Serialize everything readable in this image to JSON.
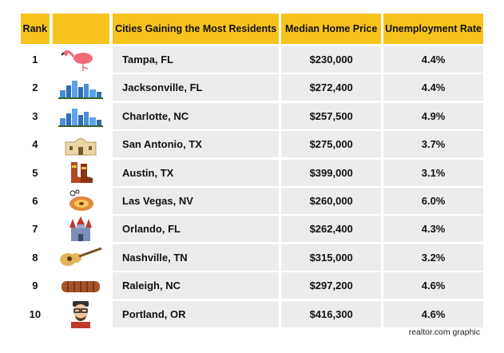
{
  "headers": {
    "rank": "Rank",
    "city": "Cities Gaining the Most Residents",
    "price": "Median Home Price",
    "unemployment": "Unemployment Rate"
  },
  "rows": [
    {
      "rank": "1",
      "city": "Tampa, FL",
      "price": "$230,000",
      "unemployment": "4.4%",
      "icon": "flamingo-icon"
    },
    {
      "rank": "2",
      "city": "Jacksonville, FL",
      "price": "$272,400",
      "unemployment": "4.4%",
      "icon": "skyline-icon"
    },
    {
      "rank": "3",
      "city": "Charlotte, NC",
      "price": "$257,500",
      "unemployment": "4.9%",
      "icon": "skyline-icon"
    },
    {
      "rank": "4",
      "city": "San Antonio, TX",
      "price": "$275,000",
      "unemployment": "3.7%",
      "icon": "alamo-icon"
    },
    {
      "rank": "5",
      "city": "Austin, TX",
      "price": "$399,000",
      "unemployment": "3.1%",
      "icon": "cowboy-boots-icon"
    },
    {
      "rank": "6",
      "city": "Las Vegas, NV",
      "price": "$260,000",
      "unemployment": "6.0%",
      "icon": "roulette-icon"
    },
    {
      "rank": "7",
      "city": "Orlando, FL",
      "price": "$262,400",
      "unemployment": "4.3%",
      "icon": "castle-icon"
    },
    {
      "rank": "8",
      "city": "Nashville, TN",
      "price": "$315,000",
      "unemployment": "3.2%",
      "icon": "guitar-icon"
    },
    {
      "rank": "9",
      "city": "Raleigh, NC",
      "price": "$297,200",
      "unemployment": "4.6%",
      "icon": "ribs-icon"
    },
    {
      "rank": "10",
      "city": "Portland, OR",
      "price": "$416,300",
      "unemployment": "4.6%",
      "icon": "hipster-icon"
    }
  ],
  "footer": "realtor.com graphic",
  "colors": {
    "header": "#f7c21c",
    "row": "#ececec"
  }
}
